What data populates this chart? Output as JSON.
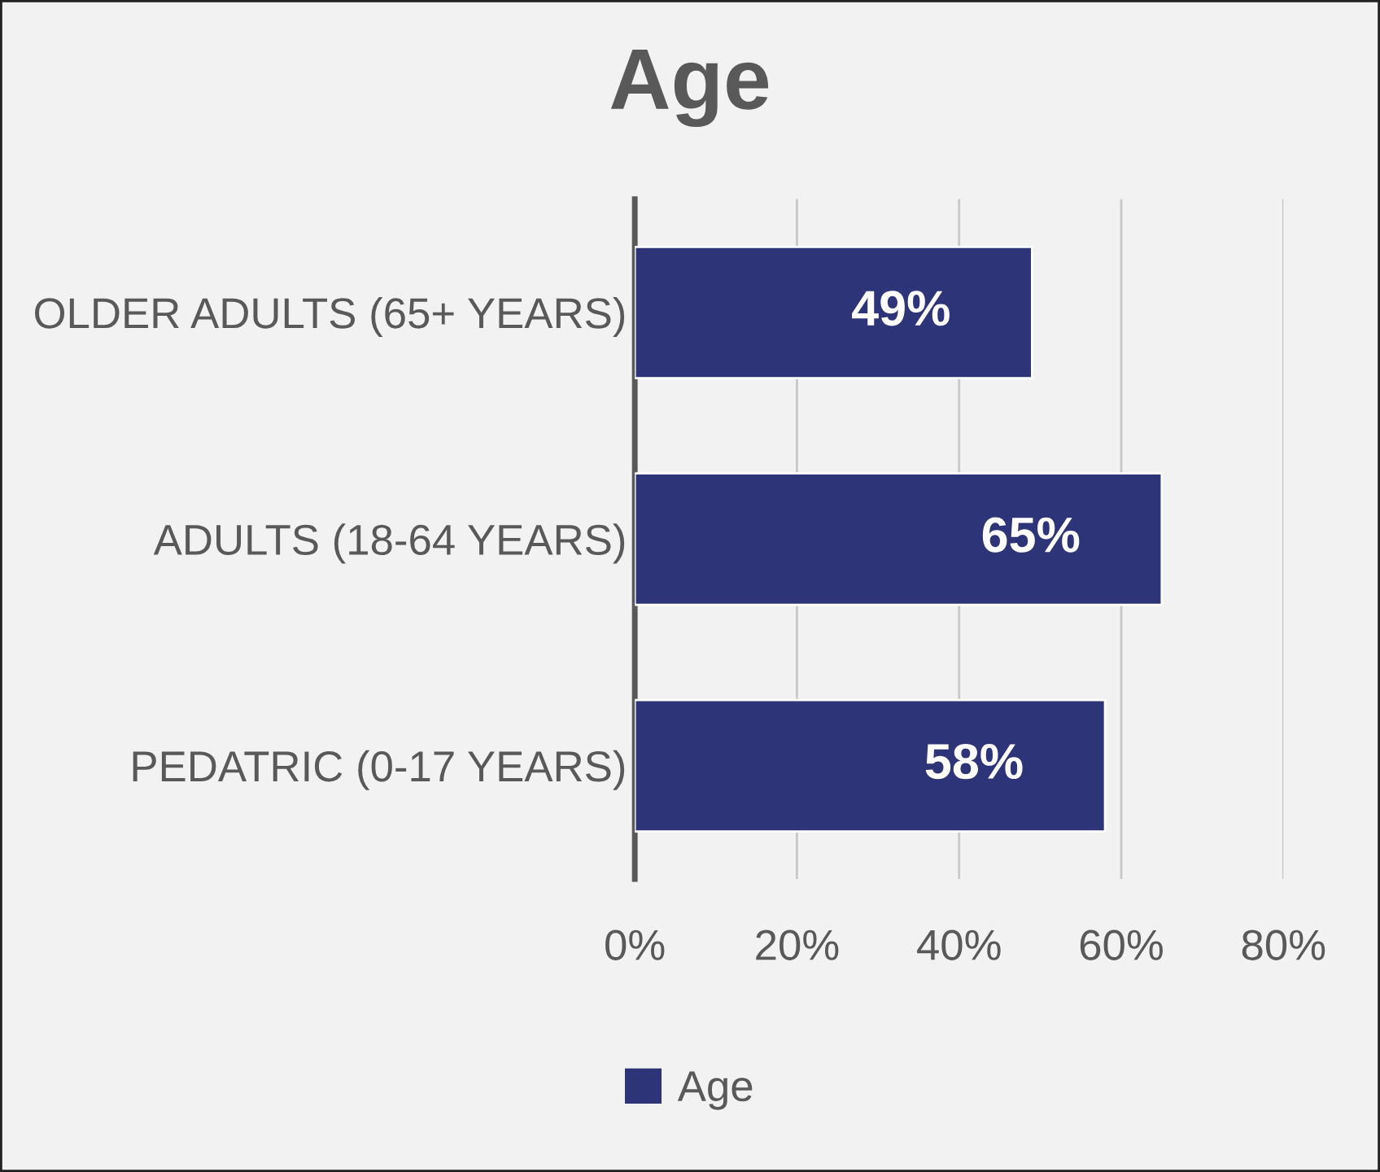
{
  "chart_data": {
    "type": "bar",
    "orientation": "horizontal",
    "title": "Age",
    "categories": [
      "OLDER ADULTS (65+ YEARS)",
      "ADULTS (18-64 YEARS)",
      "PEDATRIC (0-17 YEARS)"
    ],
    "series": [
      {
        "name": "Age",
        "color": "#2e3478",
        "values": [
          49,
          65,
          58
        ],
        "value_labels": [
          "49%",
          "65%",
          "58%"
        ]
      }
    ],
    "xlim": [
      0,
      80
    ],
    "xticks": [
      {
        "value": 0,
        "label": "0%"
      },
      {
        "value": 20,
        "label": "20%"
      },
      {
        "value": 40,
        "label": "40%"
      },
      {
        "value": 60,
        "label": "60%"
      },
      {
        "value": 80,
        "label": "80%"
      }
    ],
    "grid": "x",
    "legend": "bottom"
  }
}
